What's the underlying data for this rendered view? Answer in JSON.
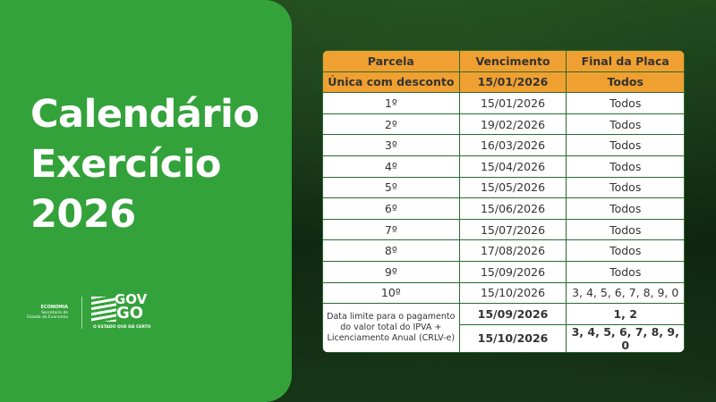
{
  "title_lines": [
    "Calendário",
    "Exercício",
    "2026"
  ],
  "logo": {
    "economia": "ECONOMIA",
    "secretaria": "Secretaria de Estado da Economia",
    "gov": "GOV",
    "go": "GO",
    "slogan": "O ESTADO QUE DÁ CERTO"
  },
  "table": {
    "headers": [
      "Parcela",
      "Vencimento",
      "Final da Placa"
    ],
    "highlight": {
      "parcela": "Única com desconto",
      "vencimento": "15/01/2026",
      "placa": "Todos"
    },
    "rows": [
      {
        "parcela": "1º",
        "vencimento": "15/01/2026",
        "placa": "Todos"
      },
      {
        "parcela": "2º",
        "vencimento": "19/02/2026",
        "placa": "Todos"
      },
      {
        "parcela": "3º",
        "vencimento": "16/03/2026",
        "placa": "Todos"
      },
      {
        "parcela": "4º",
        "vencimento": "15/04/2026",
        "placa": "Todos"
      },
      {
        "parcela": "5º",
        "vencimento": "15/05/2026",
        "placa": "Todos"
      },
      {
        "parcela": "6º",
        "vencimento": "15/06/2026",
        "placa": "Todos"
      },
      {
        "parcela": "7º",
        "vencimento": "15/07/2026",
        "placa": "Todos"
      },
      {
        "parcela": "8º",
        "vencimento": "17/08/2026",
        "placa": "Todos"
      },
      {
        "parcela": "9º",
        "vencimento": "15/09/2026",
        "placa": "Todos"
      },
      {
        "parcela": "10º",
        "vencimento": "15/10/2026",
        "placa": "3, 4, 5, 6, 7, 8, 9, 0"
      }
    ],
    "limit": {
      "label": "Data limite para o pagamento do valor total do IPVA + Licenciamento Anual (CRLV-e)",
      "entries": [
        {
          "vencimento": "15/09/2026",
          "placa": "1, 2"
        },
        {
          "vencimento": "15/10/2026",
          "placa": "3, 4, 5, 6, 7, 8, 9, 0"
        }
      ]
    }
  },
  "colors": {
    "panel": "#33a23a",
    "header": "#f0a030"
  }
}
